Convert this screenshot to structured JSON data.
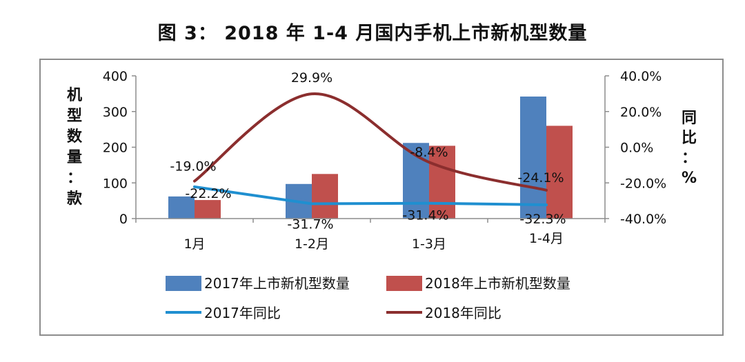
{
  "page": {
    "title": "图 3：  2018 年 1-4 月国内手机上市新机型数量"
  },
  "chart_data": {
    "type": "bar",
    "categories": [
      "1月",
      "1-2月",
      "1-3月",
      "1-4月"
    ],
    "ylabel": "机型数量：款",
    "y2label": "同比：%",
    "ylim": [
      0,
      400
    ],
    "y_ticks": [
      "400",
      "300",
      "200",
      "100",
      "0"
    ],
    "y2lim": [
      -40,
      40
    ],
    "y2_ticks": [
      "40.0%",
      "20.0%",
      "0.0%",
      "-20.0%",
      "-40.0%"
    ],
    "series": [
      {
        "name": "2017年上市新机型数量",
        "kind": "bar",
        "axis": "left",
        "color": "#4f81bd",
        "values": [
          62,
          97,
          212,
          342
        ]
      },
      {
        "name": "2018年上市新机型数量",
        "kind": "bar",
        "axis": "left",
        "color": "#c0504d",
        "values": [
          52,
          125,
          204,
          260
        ]
      },
      {
        "name": "2017年同比",
        "kind": "line",
        "axis": "right",
        "color": "#1f8fd0",
        "values": [
          -22.2,
          -31.7,
          -31.4,
          -32.3
        ],
        "labels": [
          "-22.2%",
          "-31.7%",
          "-31.4%",
          "-32.3%"
        ]
      },
      {
        "name": "2018年同比",
        "kind": "line",
        "axis": "right",
        "color": "#8b2e2e",
        "values": [
          -19.0,
          29.9,
          -8.4,
          -24.1
        ],
        "labels": [
          "-19.0%",
          "29.9%",
          "-8.4%",
          "-24.1%"
        ]
      }
    ],
    "legend_position": "bottom",
    "grid": false
  }
}
